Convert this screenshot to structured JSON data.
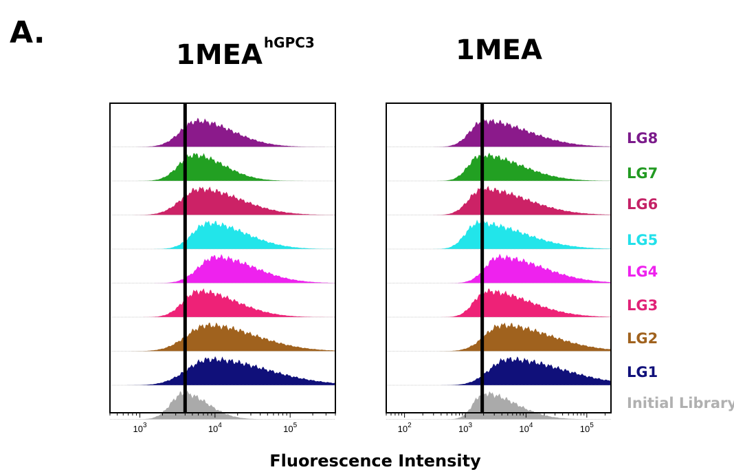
{
  "figure": {
    "panel_label": "A.",
    "xlabel": "Fluorescence Intensity"
  },
  "chart_data": [
    {
      "type": "area",
      "title": "1MEA",
      "title_superscript": "hGPC3",
      "xscale": "log",
      "xlim": [
        400,
        400000
      ],
      "xticks": [
        1000,
        10000,
        100000
      ],
      "xtick_labels": [
        {
          "base": "10",
          "exp": "3"
        },
        {
          "base": "10",
          "exp": "4"
        },
        {
          "base": "10",
          "exp": "5"
        }
      ],
      "gate": 4000,
      "series": [
        {
          "name": "LG8",
          "color": "#8B1A8B",
          "peak": 5800,
          "width": 0.22,
          "tail": 0.25
        },
        {
          "name": "LG7",
          "color": "#22A022",
          "peak": 5200,
          "width": 0.2,
          "tail": 0.2
        },
        {
          "name": "LG6",
          "color": "#CC2266",
          "peak": 6200,
          "width": 0.24,
          "tail": 0.3
        },
        {
          "name": "LG5",
          "color": "#22E5EA",
          "peak": 8000,
          "width": 0.2,
          "tail": 0.3
        },
        {
          "name": "LG4",
          "color": "#EE22EE",
          "peak": 10000,
          "width": 0.22,
          "tail": 0.3
        },
        {
          "name": "LG3",
          "color": "#EE2277",
          "peak": 6000,
          "width": 0.2,
          "tail": 0.3
        },
        {
          "name": "LG2",
          "color": "#A0621E",
          "peak": 8000,
          "width": 0.28,
          "tail": 0.35
        },
        {
          "name": "LG1",
          "color": "#10107A",
          "peak": 8500,
          "width": 0.3,
          "tail": 0.45
        },
        {
          "name": "Initial Library",
          "color": "#AAAAAA",
          "peak": 3800,
          "width": 0.17,
          "tail": 0.15
        }
      ]
    },
    {
      "type": "area",
      "title": "1MEA",
      "xscale": "log",
      "xlim": [
        50,
        250000
      ],
      "xticks": [
        100,
        1000,
        10000,
        100000
      ],
      "xtick_labels": [
        {
          "base": "10",
          "exp": "2"
        },
        {
          "base": "10",
          "exp": "3"
        },
        {
          "base": "10",
          "exp": "4"
        },
        {
          "base": "10",
          "exp": "5"
        }
      ],
      "gate": 1900,
      "series": [
        {
          "name": "LG8",
          "color": "#8B1A8B",
          "peak": 2000,
          "width": 0.22,
          "tail": 0.5
        },
        {
          "name": "LG7",
          "color": "#22A022",
          "peak": 1800,
          "width": 0.2,
          "tail": 0.45
        },
        {
          "name": "LG6",
          "color": "#CC2266",
          "peak": 1900,
          "width": 0.22,
          "tail": 0.5
        },
        {
          "name": "LG5",
          "color": "#22E5EA",
          "peak": 1600,
          "width": 0.2,
          "tail": 0.55
        },
        {
          "name": "LG4",
          "color": "#EE22EE",
          "peak": 3500,
          "width": 0.22,
          "tail": 0.5
        },
        {
          "name": "LG3",
          "color": "#EE2277",
          "peak": 2200,
          "width": 0.2,
          "tail": 0.5
        },
        {
          "name": "LG2",
          "color": "#A0621E",
          "peak": 4000,
          "width": 0.28,
          "tail": 0.5
        },
        {
          "name": "LG1",
          "color": "#10107A",
          "peak": 5000,
          "width": 0.3,
          "tail": 0.6
        },
        {
          "name": "Initial Library",
          "color": "#AAAAAA",
          "peak": 2000,
          "width": 0.17,
          "tail": 0.35
        }
      ]
    }
  ],
  "legend": [
    {
      "label": "LG8",
      "color": "#7B1A8B"
    },
    {
      "label": "LG7",
      "color": "#229A22"
    },
    {
      "label": "LG6",
      "color": "#C42266"
    },
    {
      "label": "LG5",
      "color": "#22E0EA"
    },
    {
      "label": "LG4",
      "color": "#EE22EE"
    },
    {
      "label": "LG3",
      "color": "#E02277"
    },
    {
      "label": "LG2",
      "color": "#A0621E"
    },
    {
      "label": "LG1",
      "color": "#10107A"
    },
    {
      "label": "Initial Library",
      "color": "#B0B0B0"
    }
  ]
}
